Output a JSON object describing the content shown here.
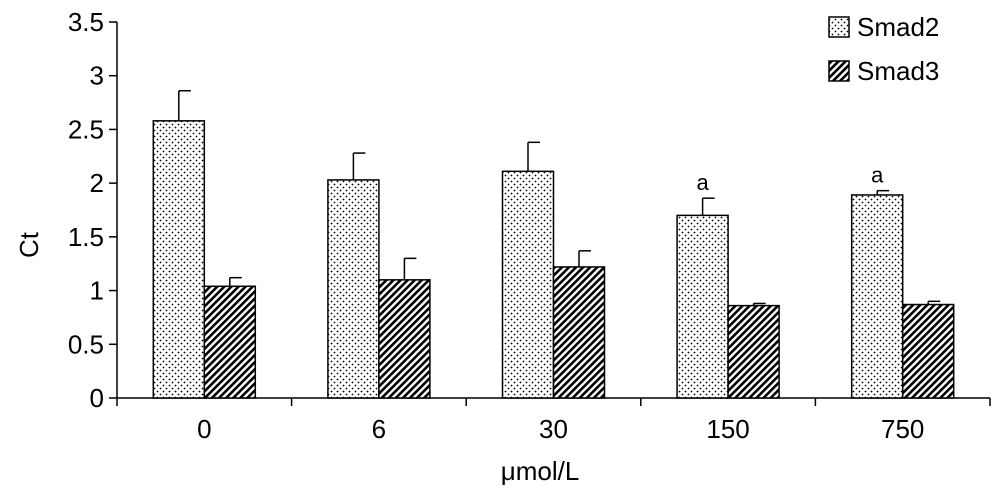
{
  "chart_data": {
    "type": "bar",
    "title": "",
    "xlabel": "μmol/L",
    "ylabel": "Ct",
    "categories": [
      "0",
      "6",
      "30",
      "150",
      "750"
    ],
    "ylim": [
      0,
      3.5
    ],
    "yticks": [
      "0",
      "0.5",
      "1",
      "1.5",
      "2",
      "2.5",
      "3",
      "3.5"
    ],
    "grid": false,
    "legend_position": "top-right",
    "series": [
      {
        "name": "Smad2",
        "pattern": "dotted",
        "values": [
          2.58,
          2.03,
          2.11,
          1.7,
          1.89
        ],
        "errors": [
          0.28,
          0.25,
          0.27,
          0.16,
          0.04
        ]
      },
      {
        "name": "Smad3",
        "pattern": "hatched",
        "values": [
          1.04,
          1.1,
          1.22,
          0.86,
          0.87
        ],
        "errors": [
          0.08,
          0.2,
          0.15,
          0.02,
          0.03
        ]
      }
    ],
    "annotations": [
      {
        "category": "150",
        "series": "Smad2",
        "text": "a"
      },
      {
        "category": "750",
        "series": "Smad2",
        "text": "a"
      }
    ]
  }
}
